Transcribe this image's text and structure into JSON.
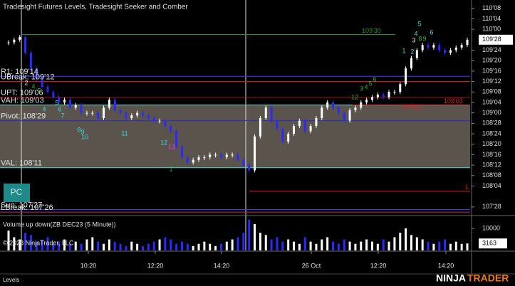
{
  "chart_data": {
    "type": "candlestick",
    "title": "Tradesight Futures Levels, Tradesight Seeker and Comber",
    "ylim": [
      107.78,
      110.35
    ],
    "yticks": [
      {
        "value": 110.25,
        "label": "110'08"
      },
      {
        "value": 110.125,
        "label": "110'04"
      },
      {
        "value": 110.0,
        "label": "110'00"
      },
      {
        "value": 109.75,
        "label": "109'24"
      },
      {
        "value": 109.625,
        "label": "109'20"
      },
      {
        "value": 109.5,
        "label": "109'16"
      },
      {
        "value": 109.375,
        "label": "109'12"
      },
      {
        "value": 109.25,
        "label": "109'08"
      },
      {
        "value": 109.125,
        "label": "109'04"
      },
      {
        "value": 109.0,
        "label": "109'00"
      },
      {
        "value": 108.875,
        "label": "108'28"
      },
      {
        "value": 108.75,
        "label": "108'24"
      },
      {
        "value": 108.625,
        "label": "108'20"
      },
      {
        "value": 108.5,
        "label": "108'16"
      },
      {
        "value": 108.375,
        "label": "108'12"
      },
      {
        "value": 108.25,
        "label": "108'08"
      },
      {
        "value": 108.125,
        "label": "108'04"
      },
      {
        "value": 107.875,
        "label": "107'28"
      }
    ],
    "last_price": {
      "value": 109.875,
      "label": "109'28"
    },
    "x_labels": [
      "10:20",
      "12:20",
      "14:20",
      "26 Oct",
      "12:20",
      "14:20"
    ],
    "series": [
      {
        "name": "ZB DEC23 (5 Minute)",
        "up_color": "#ffffff",
        "down_color": "#2a2aff",
        "values": [
          109.84375,
          109.875,
          109.90625,
          109.71875,
          109.53125,
          109.40625,
          109.3125,
          109.25,
          109.1875,
          109.125,
          109.15625,
          109.0625,
          109.09375,
          109.0,
          109.0,
          109.0,
          108.9375,
          109.0625,
          109.15625,
          109.03125,
          109.0,
          108.9375,
          108.96875,
          109.0,
          108.96875,
          108.9375,
          108.90625,
          108.90625,
          108.84375,
          108.78125,
          108.59375,
          108.46875,
          108.40625,
          108.4375,
          108.46875,
          108.46875,
          108.5,
          108.5,
          108.46875,
          108.5,
          108.5,
          108.4375,
          108.375,
          108.3125,
          108.71875,
          108.9375,
          109.0625,
          108.90625,
          108.8125,
          108.65625,
          108.75,
          108.84375,
          108.90625,
          108.78125,
          108.84375,
          108.9375,
          109.0625,
          109.125,
          109.0625,
          109.0,
          108.90625,
          109.03125,
          109.0625,
          109.125,
          109.15625,
          109.1875,
          109.21875,
          109.1875,
          109.25,
          109.25,
          109.34375,
          109.53125,
          109.65625,
          109.75,
          109.8125,
          109.78125,
          109.8125,
          109.75,
          109.71875,
          109.75,
          109.78125,
          109.8125,
          109.875
        ]
      }
    ],
    "levels": [
      {
        "label": "R1: 109'14",
        "value": 109.4375,
        "color": "#3a3aff"
      },
      {
        "label": "UBreak: 109'12",
        "value": 109.375,
        "color": "#e02020"
      },
      {
        "label": "UPT: 109'06",
        "value": 109.1875,
        "color": "#a01818"
      },
      {
        "label": "VAH: 109'03",
        "value": 109.09375,
        "color": "#4fd9d0"
      },
      {
        "label": "Pivot: 108'29",
        "value": 108.90625,
        "color": "#2a2ad0"
      },
      {
        "label": "VAL: 108'11",
        "value": 108.34375,
        "color": "#4fd9d0"
      },
      {
        "label": "Sup: 107'27",
        "value": 107.84375,
        "color": "#3a3aff"
      },
      {
        "label": "LBreak: 107'26",
        "value": 107.8125,
        "color": "#d02070"
      }
    ],
    "value_area_color": "#5a544c",
    "markers": [
      {
        "label": "109'30",
        "value": 109.9375,
        "color": "#2e8b2e"
      },
      {
        "label": "1",
        "value": 108.0625,
        "color": "#e02020"
      },
      {
        "label": "109'03",
        "value": 109.09375,
        "color": "#e02020"
      }
    ],
    "note": "109'01",
    "pc_label": "PC",
    "annotations": [
      {
        "text": "2",
        "color": "#e0e0e0"
      },
      {
        "text": "4",
        "color": "#2fae2f"
      },
      {
        "text": "5",
        "color": "#2fae2f"
      },
      {
        "text": "4",
        "color": "#3fd8d8"
      },
      {
        "text": "5",
        "color": "#3fd8d8"
      },
      {
        "text": "6",
        "color": "#3fd8d8"
      },
      {
        "text": "7",
        "color": "#3fd8d8"
      },
      {
        "text": "8",
        "color": "#3fd8d8"
      },
      {
        "text": "9",
        "color": "#3fd8d8"
      },
      {
        "text": "10",
        "color": "#3fd8d8"
      },
      {
        "text": "11",
        "color": "#3fd8d8"
      },
      {
        "text": "12",
        "color": "#3fd8d8"
      },
      {
        "text": "13",
        "color": "#e040e0"
      },
      {
        "text": "1",
        "color": "#2fae2f"
      },
      {
        "text": "12",
        "color": "#2fae2f"
      },
      {
        "text": "3",
        "color": "#2fae2f"
      },
      {
        "text": "4",
        "color": "#2fae2f"
      },
      {
        "text": "5",
        "color": "#2fae2f"
      },
      {
        "text": "6",
        "color": "#2fae2f"
      },
      {
        "text": "1",
        "color": "#3fd8d8"
      },
      {
        "text": "2",
        "color": "#3fd8d8"
      },
      {
        "text": "3",
        "color": "#e0e0e0"
      },
      {
        "text": "4",
        "color": "#3fd8d8"
      },
      {
        "text": "5",
        "color": "#3fd8d8"
      },
      {
        "text": "6",
        "color": "#3fd8d8"
      },
      {
        "text": "8",
        "color": "#2fae2f"
      },
      {
        "text": "9",
        "color": "#2fae2f"
      }
    ],
    "volume": {
      "title": "Volume up down(ZB DEC23 (5 Minute))",
      "ylim": [
        0,
        15200
      ],
      "yticks": [
        {
          "value": 10000,
          "label": "10000"
        }
      ],
      "values": [
        9000,
        6000,
        5000,
        8000,
        7000,
        4000,
        5000,
        6000,
        3000,
        4000,
        5000,
        3000,
        4000,
        3000,
        5000,
        6000,
        4000,
        3000,
        5000,
        4000,
        3000,
        2000,
        4000,
        3000,
        2000,
        3000,
        4000,
        5000,
        6000,
        5000,
        3000,
        4000,
        3000,
        2000,
        3000,
        4000,
        3000,
        2000,
        3000,
        4000,
        5000,
        6000,
        8000,
        14000,
        12000,
        8000,
        7000,
        5000,
        6000,
        4000,
        5000,
        4000,
        3000,
        6000,
        4000,
        3000,
        5000,
        6000,
        4000,
        3000,
        5000,
        4000,
        3000,
        4000,
        5000,
        4000,
        3000,
        5000,
        4000,
        6000,
        8000,
        10000,
        7000,
        6000,
        5000,
        4000,
        3000,
        4000,
        5000,
        3000,
        4000,
        3000,
        3163
      ]
    },
    "copyright": "© 2023 NinjaTrader, LLC",
    "tab": "Levels",
    "brand": {
      "left": "NINJA",
      "right": "TRADER"
    }
  }
}
